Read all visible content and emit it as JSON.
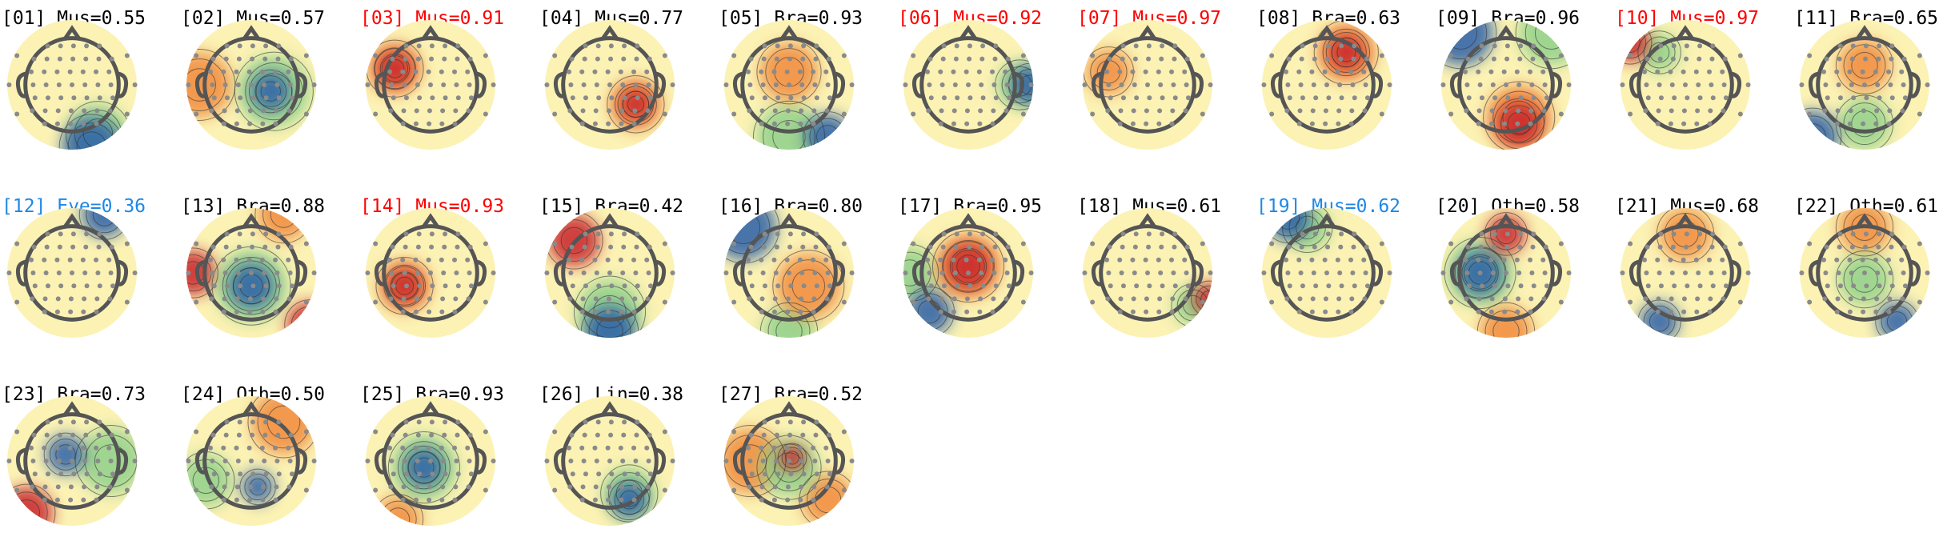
{
  "components": [
    {
      "label": "[01] Mus=0.55",
      "color": "#000000"
    },
    {
      "label": "[02] Mus=0.57",
      "color": "#000000"
    },
    {
      "label": "[03] Mus=0.91",
      "color": "#ff0000"
    },
    {
      "label": "[04] Mus=0.77",
      "color": "#000000"
    },
    {
      "label": "[05] Bra=0.93",
      "color": "#000000"
    },
    {
      "label": "[06] Mus=0.92",
      "color": "#ff0000"
    },
    {
      "label": "[07] Mus=0.97",
      "color": "#ff0000"
    },
    {
      "label": "[08] Bra=0.63",
      "color": "#000000"
    },
    {
      "label": "[09] Bra=0.96",
      "color": "#000000"
    },
    {
      "label": "[10] Mus=0.97",
      "color": "#ff0000"
    },
    {
      "label": "[11] Bra=0.65",
      "color": "#000000"
    },
    {
      "label": "[12] Eye=0.36",
      "color": "#1e88e5"
    },
    {
      "label": "[13] Bra=0.88",
      "color": "#000000"
    },
    {
      "label": "[14] Mus=0.93",
      "color": "#ff0000"
    },
    {
      "label": "[15] Bra=0.42",
      "color": "#000000"
    },
    {
      "label": "[16] Bra=0.80",
      "color": "#000000"
    },
    {
      "label": "[17] Bra=0.95",
      "color": "#000000"
    },
    {
      "label": "[18] Mus=0.61",
      "color": "#000000"
    },
    {
      "label": "[19] Mus=0.62",
      "color": "#1e88e5"
    },
    {
      "label": "[20] Oth=0.58",
      "color": "#000000"
    },
    {
      "label": "[21] Mus=0.68",
      "color": "#000000"
    },
    {
      "label": "[22] Oth=0.61",
      "color": "#000000"
    },
    {
      "label": "[23] Bra=0.73",
      "color": "#000000"
    },
    {
      "label": "[24] Oth=0.50",
      "color": "#000000"
    },
    {
      "label": "[25] Bra=0.93",
      "color": "#000000"
    },
    {
      "label": "[26] Lin=0.38",
      "color": "#000000"
    },
    {
      "label": "[27] Bra=0.52",
      "color": "#000000"
    }
  ]
}
